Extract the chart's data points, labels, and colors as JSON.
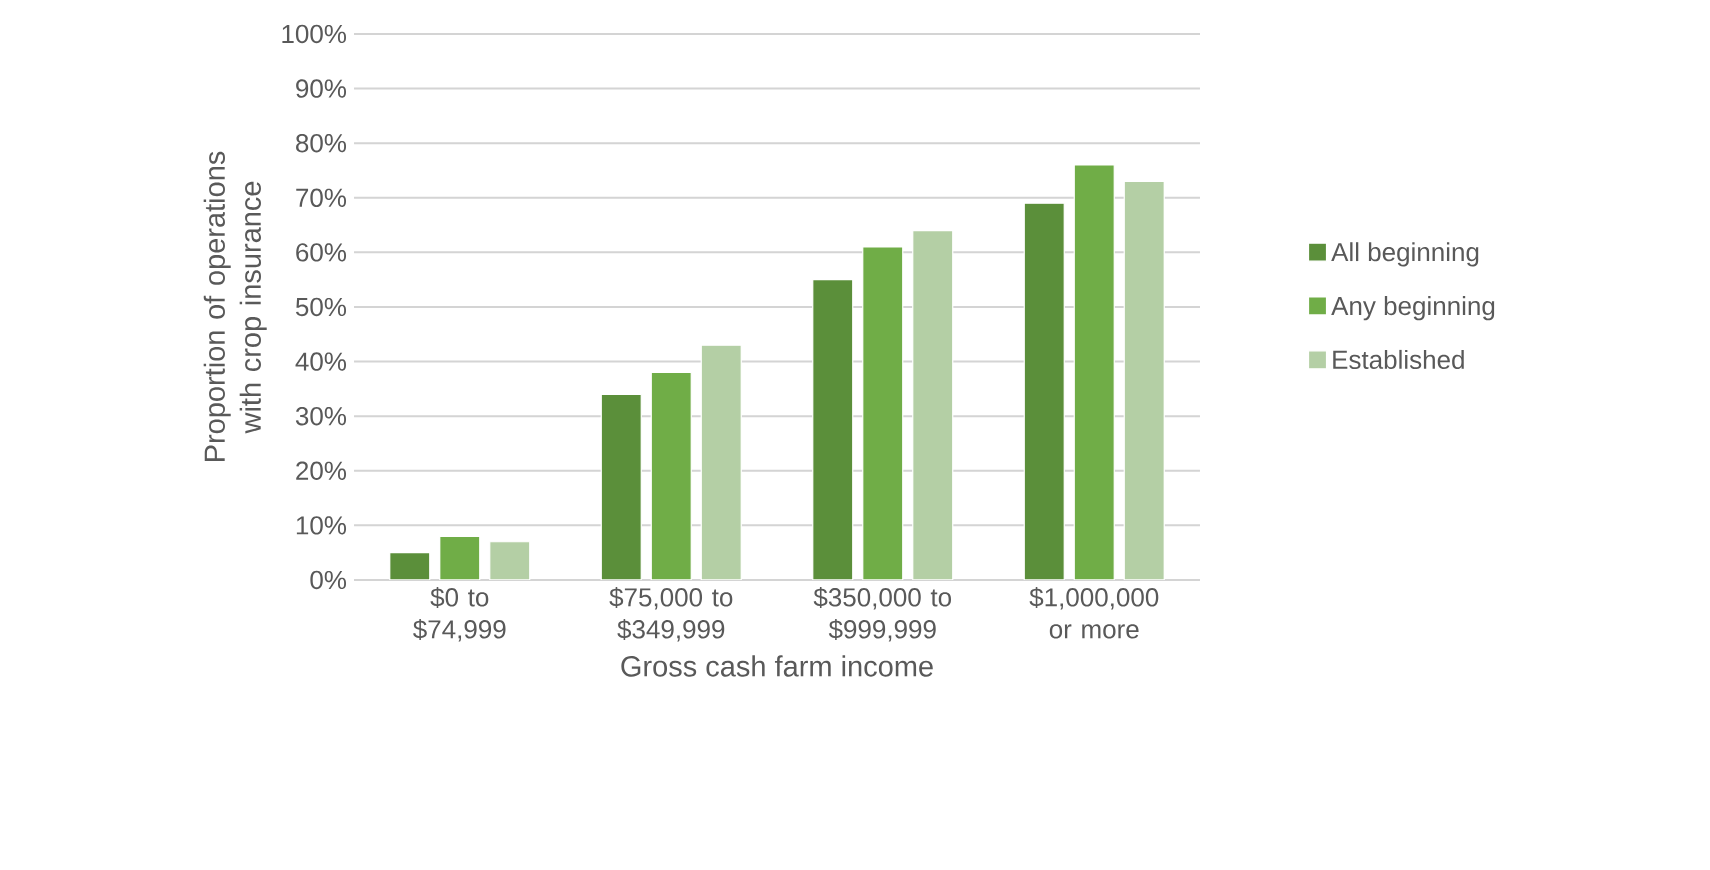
{
  "chart_data": {
    "type": "bar",
    "xlabel": "Gross cash farm income",
    "ylabel": "Proportion of operations with crop insurance",
    "categories": [
      "$0 to $74,999",
      "$75,000 to $349,999",
      "$350,000 to $999,999",
      "$1,000,000 or more"
    ],
    "series": [
      {
        "name": "All beginning",
        "color": "#5b8f3a",
        "values": [
          5,
          34,
          55,
          69
        ]
      },
      {
        "name": "Any beginning",
        "color": "#70ad47",
        "values": [
          8,
          38,
          61,
          76
        ]
      },
      {
        "name": "Established",
        "color": "#b4cfa5",
        "values": [
          7,
          43,
          64,
          73
        ]
      }
    ],
    "ylim": [
      0,
      100
    ],
    "yticks": [
      {
        "value": 0,
        "label": "0%"
      },
      {
        "value": 10,
        "label": "10%"
      },
      {
        "value": 20,
        "label": "20%"
      },
      {
        "value": 30,
        "label": "30%"
      },
      {
        "value": 40,
        "label": "40%"
      },
      {
        "value": 50,
        "label": "50%"
      },
      {
        "value": 60,
        "label": "60%"
      },
      {
        "value": 70,
        "label": "70%"
      },
      {
        "value": 80,
        "label": "80%"
      },
      {
        "value": 90,
        "label": "90%"
      },
      {
        "value": 100,
        "label": "100%"
      }
    ],
    "grid": "y",
    "legend": "right"
  }
}
